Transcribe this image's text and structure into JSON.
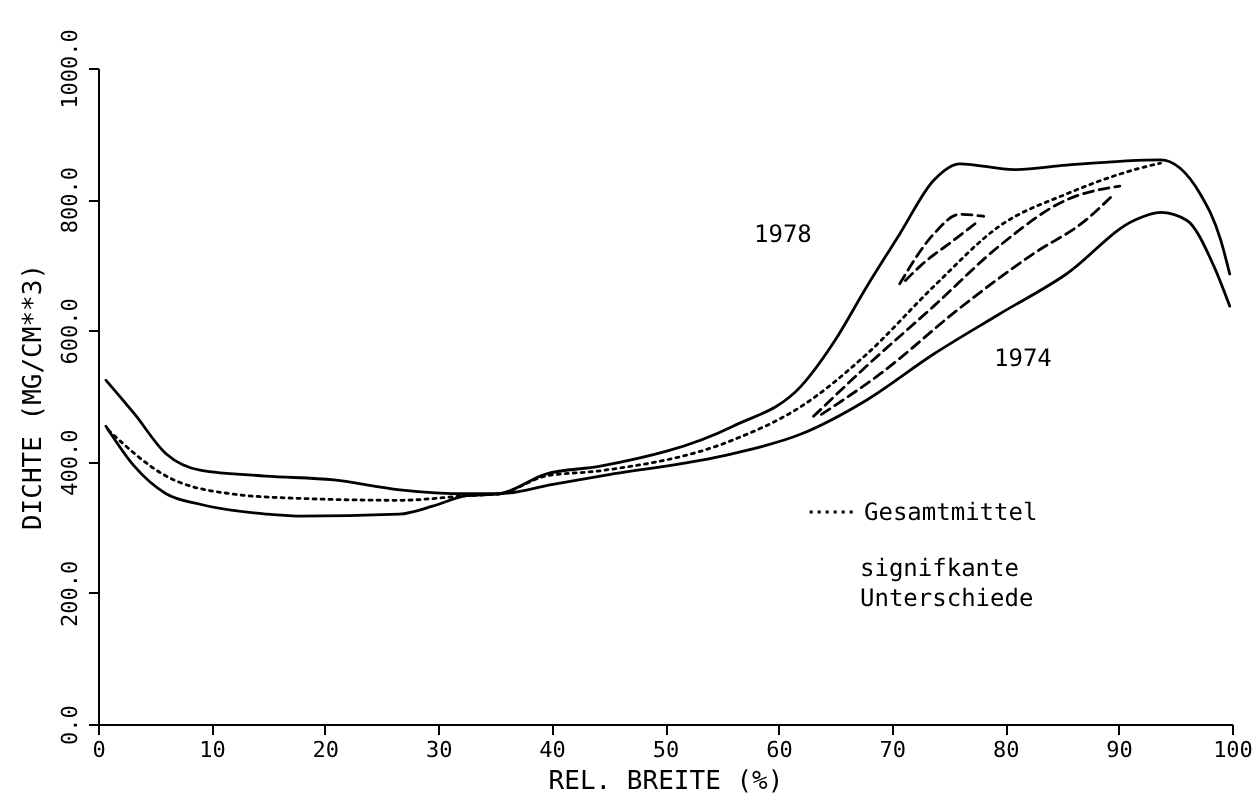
{
  "chart_data": {
    "type": "line",
    "xlabel": "REL. BREITE (%)",
    "ylabel": "DICHTE (MG/CM**3)",
    "xlim": [
      0,
      100
    ],
    "xticks": [
      0,
      10,
      20,
      30,
      40,
      50,
      60,
      70,
      80,
      90,
      100
    ],
    "ylim": [
      0,
      1000
    ],
    "yticks": [
      {
        "value": 0,
        "label": "0.0"
      },
      {
        "value": 200,
        "label": "200.0"
      },
      {
        "value": 400,
        "label": "400.0"
      },
      {
        "value": 600,
        "label": "600.0"
      },
      {
        "value": 800,
        "label": "800.0"
      },
      {
        "value": 1000,
        "label": "1000.0"
      }
    ],
    "grid": false,
    "legend": "bottom right",
    "series": [
      {
        "color": "#000000",
        "line_style": "solid",
        "x": [
          0.7,
          3.2,
          6,
          9,
          14.8,
          17.6,
          26.6,
          29.5,
          32.5,
          35.4,
          39.5,
          44.3,
          56,
          62,
          65,
          67.8,
          70.7,
          73.7,
          76,
          80.8,
          85.4,
          93.7,
          97.2,
          99,
          99.8
        ],
        "values": [
          454,
          393,
          351,
          335,
          320,
          317,
          320,
          332,
          348,
          351,
          381,
          393,
          454,
          515,
          585,
          667,
          747,
          829,
          854,
          845,
          852,
          860,
          808,
          738,
          686
        ]
      },
      {
        "color": "#000000",
        "line_style": "solid",
        "x": [
          0.7,
          3.2,
          6,
          9,
          14.8,
          20.8,
          26.6,
          32.5,
          35.4,
          40,
          44.3,
          56,
          62,
          67.8,
          73.7,
          79.5,
          85.4,
          91.4,
          93.7,
          96,
          98.4,
          99.8
        ],
        "values": [
          524,
          473,
          412,
          387,
          378,
          372,
          357,
          351,
          351,
          365,
          378,
          412,
          442,
          494,
          564,
          625,
          686,
          768,
          780,
          768,
          698,
          637
        ]
      },
      {
        "name": "Gesamtmittel",
        "color": "#000000",
        "line_style": "dotted",
        "x": [
          0.9,
          6,
          11.7,
          17.6,
          26.6,
          32.5,
          35.4,
          39.5,
          44.3,
          56,
          62,
          67.8,
          73.7,
          79.5,
          85.4,
          91.4,
          93.7
        ],
        "values": [
          448,
          378,
          351,
          344,
          341,
          348,
          351,
          378,
          386,
          433,
          484,
          564,
          667,
          759,
          808,
          845,
          855
        ]
      },
      {
        "color": "#000000",
        "line_style": "dashed",
        "x": [
          70.7,
          73.7,
          76,
          78.1
        ],
        "values": [
          671,
          747,
          777,
          774
        ]
      },
      {
        "color": "#000000",
        "line_style": "dashed",
        "x": [
          71.2,
          72.5,
          75.5,
          77.6
        ],
        "values": [
          676,
          698,
          738,
          766
        ]
      },
      {
        "color": "#000000",
        "line_style": "dashed",
        "x": [
          63.8,
          69,
          76,
          82.5,
          87.1,
          89.6
        ],
        "values": [
          472,
          534,
          634,
          717,
          768,
          808
        ]
      },
      {
        "color": "#000000",
        "line_style": "dashed",
        "x": [
          63.1,
          67.8,
          73.7,
          79.5,
          85.4,
          90.1
        ],
        "values": [
          469,
          546,
          637,
          729,
          799,
          820
        ]
      }
    ],
    "annotations": [
      "1978",
      "1974",
      "signifkante Unterschiede"
    ]
  }
}
